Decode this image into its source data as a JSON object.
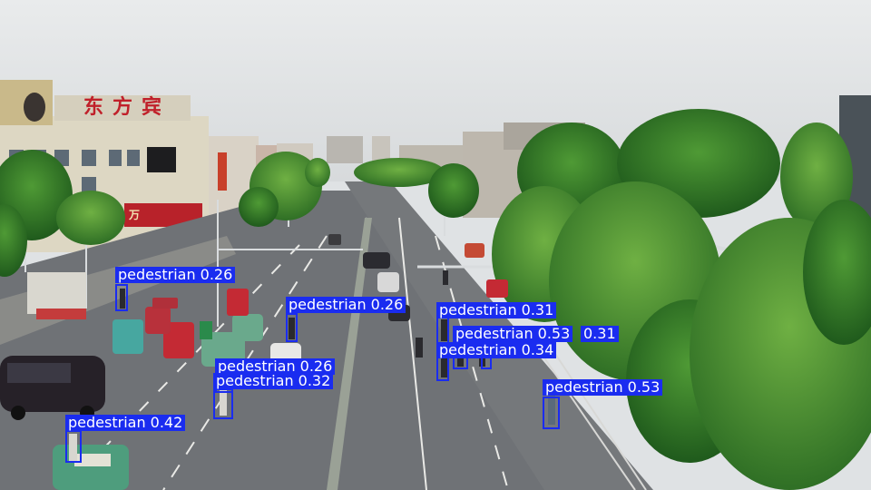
{
  "scene": {
    "signage": {
      "rooftop_sign": "东方宾",
      "red_shop_sign": "万"
    }
  },
  "detections": [
    {
      "label": "pedestrian",
      "confidence": "0.26"
    },
    {
      "label": "pedestrian",
      "confidence": "0.26"
    },
    {
      "label": "pedestrian",
      "confidence": "0.31"
    },
    {
      "label": "pedestrian",
      "confidence": "0.53"
    },
    {
      "label": "pedestrian",
      "confidence": "0.31"
    },
    {
      "label": "pedestrian",
      "confidence": "0.34"
    },
    {
      "label": "pedestrian",
      "confidence": "0.26"
    },
    {
      "label": "pedestrian",
      "confidence": "0.32"
    },
    {
      "label": "pedestrian",
      "confidence": "0.53"
    },
    {
      "label": "pedestrian",
      "confidence": "0.42"
    }
  ],
  "colors": {
    "box": "#1a2cf0",
    "label_text": "#ffffff",
    "tree_green": "#3f8a2f",
    "road": "#6f7276"
  }
}
